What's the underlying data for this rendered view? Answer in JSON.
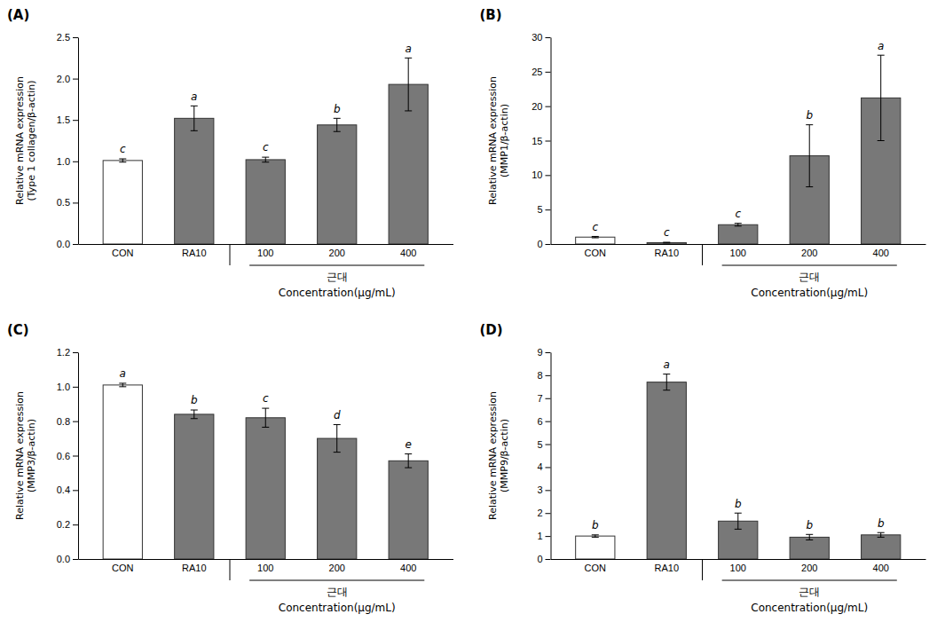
{
  "chart_data": [
    {
      "type": "bar",
      "title": "(A)",
      "ylabel": "Relative mRNA expression\n(Type 1 collagen/β-actin)",
      "xlabel": "Concentration(μg/mL)",
      "annotations": [
        "근대"
      ],
      "categories": [
        "CON",
        "RA10",
        "100",
        "200",
        "400"
      ],
      "values": [
        1.01,
        1.52,
        1.02,
        1.44,
        1.93
      ],
      "errors": [
        0.02,
        0.15,
        0.03,
        0.08,
        0.32
      ],
      "sig_labels": [
        "c",
        "a",
        "c",
        "b",
        "a"
      ],
      "colors": [
        "white",
        "#787878",
        "#787878",
        "#787878",
        "#787878"
      ],
      "ylim": [
        0,
        2.5
      ],
      "yticks": [
        {
          "value": 0,
          "label": "0.0"
        },
        0.5,
        {
          "value": 1.0,
          "label": "1.0"
        },
        1.5,
        {
          "value": 2.0,
          "label": "2.0"
        },
        2.5
      ],
      "grid": false
    },
    {
      "type": "bar",
      "title": "(B)",
      "ylabel": "Relative mRNA expression\n(MMP1/β-actin)",
      "xlabel": "Concentration(μg/mL)",
      "annotations": [
        "근대"
      ],
      "categories": [
        "CON",
        "RA10",
        "100",
        "200",
        "400"
      ],
      "values": [
        1.0,
        0.2,
        2.8,
        12.8,
        21.2
      ],
      "errors": [
        0.1,
        0.05,
        0.2,
        4.5,
        6.2
      ],
      "sig_labels": [
        "c",
        "c",
        "c",
        "b",
        "a"
      ],
      "colors": [
        "white",
        "#787878",
        "#787878",
        "#787878",
        "#787878"
      ],
      "ylim": [
        0,
        30
      ],
      "yticks": [
        0,
        5,
        10,
        15,
        20,
        25,
        30
      ],
      "grid": false
    },
    {
      "type": "bar",
      "title": "(C)",
      "ylabel": "Relative mRNA expression\n(MMP3/β-actin)",
      "xlabel": "Concentration(μg/mL)",
      "annotations": [
        "근대"
      ],
      "categories": [
        "CON",
        "RA10",
        "100",
        "200",
        "400"
      ],
      "values": [
        1.01,
        0.84,
        0.82,
        0.7,
        0.57
      ],
      "errors": [
        0.01,
        0.025,
        0.055,
        0.08,
        0.04
      ],
      "sig_labels": [
        "a",
        "b",
        "c",
        "d",
        "e"
      ],
      "colors": [
        "white",
        "#787878",
        "#787878",
        "#787878",
        "#787878"
      ],
      "ylim": [
        0,
        1.2
      ],
      "yticks": [
        {
          "value": 0,
          "label": "0.0"
        },
        0.2,
        0.4,
        0.6,
        0.8,
        {
          "value": 1.0,
          "label": "1.0"
        },
        1.2
      ],
      "grid": false
    },
    {
      "type": "bar",
      "title": "(D)",
      "ylabel": "Relative mRNA expression\n(MMP9/β-actin)",
      "xlabel": "Concentration(μg/mL)",
      "annotations": [
        "근대"
      ],
      "categories": [
        "CON",
        "RA10",
        "100",
        "200",
        "400"
      ],
      "values": [
        1.0,
        7.7,
        1.65,
        0.95,
        1.05
      ],
      "errors": [
        0.05,
        0.35,
        0.35,
        0.12,
        0.1
      ],
      "sig_labels": [
        "b",
        "a",
        "b",
        "b",
        "b"
      ],
      "colors": [
        "white",
        "#787878",
        "#787878",
        "#787878",
        "#787878"
      ],
      "ylim": [
        0,
        9
      ],
      "yticks": [
        0,
        1,
        2,
        3,
        4,
        5,
        6,
        7,
        8,
        9
      ],
      "grid": false
    }
  ]
}
